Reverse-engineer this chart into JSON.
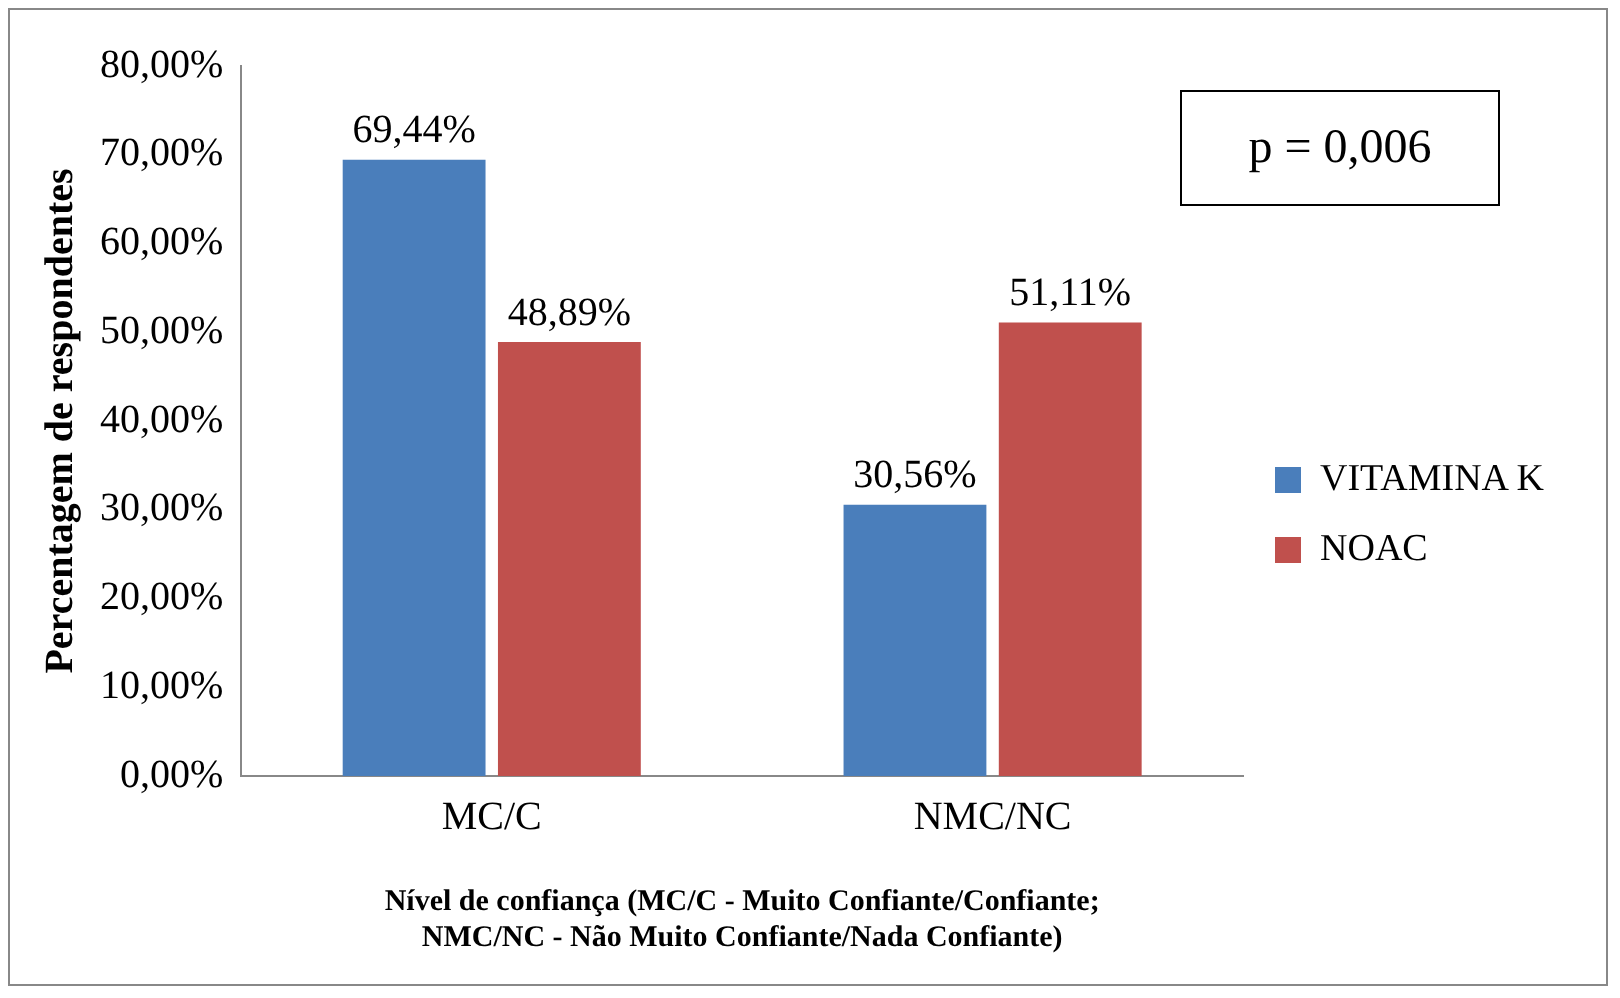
{
  "chart_data": {
    "type": "bar",
    "ylabel": "Percentagem de respondentes",
    "xlabel": "Nível de confiança (MC/C - Muito Confiante/Confiante;\nNMC/NC - Não Muito Confiante/Nada Confiante)",
    "categories": [
      "MC/C",
      "NMC/NC"
    ],
    "series": [
      {
        "name": "VITAMINA K",
        "color": "#4a7ebb",
        "values": [
          69.44,
          30.56
        ],
        "value_labels": [
          "69,44%",
          "30,56%"
        ]
      },
      {
        "name": "NOAC",
        "color": "#c0504d",
        "values": [
          48.89,
          51.11
        ],
        "value_labels": [
          "48,89%",
          "51,11%"
        ]
      }
    ],
    "ylim": [
      0,
      80
    ],
    "yticks": [
      {
        "value": 0,
        "label": "0,00%"
      },
      {
        "value": 10,
        "label": "10,00%"
      },
      {
        "value": 20,
        "label": "20,00%"
      },
      {
        "value": 30,
        "label": "30,00%"
      },
      {
        "value": 40,
        "label": "40,00%"
      },
      {
        "value": 50,
        "label": "50,00%"
      },
      {
        "value": 60,
        "label": "60,00%"
      },
      {
        "value": 70,
        "label": "70,00%"
      },
      {
        "value": 80,
        "label": "80,00%"
      }
    ],
    "grid": false,
    "legend": "right",
    "annotations": [
      "p = 0,006"
    ]
  }
}
